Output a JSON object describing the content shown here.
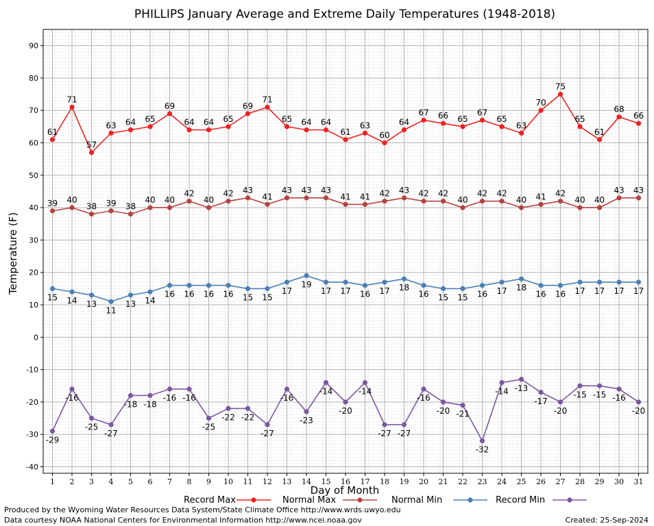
{
  "chart_data": {
    "type": "line",
    "title": "PHILLIPS January Average and Extreme Daily Temperatures (1948-2018)",
    "xlabel": "Day of Month",
    "ylabel": "Temperature (F)",
    "ylim": [
      -42,
      95
    ],
    "yticks": [
      90,
      80,
      70,
      60,
      50,
      40,
      30,
      20,
      10,
      0,
      -10,
      -20,
      -30,
      -40
    ],
    "categories": [
      "1",
      "2",
      "3",
      "4",
      "5",
      "6",
      "7",
      "8",
      "9",
      "10",
      "11",
      "12",
      "13",
      "14",
      "15",
      "16",
      "17",
      "18",
      "19",
      "20",
      "21",
      "22",
      "23",
      "24",
      "25",
      "26",
      "27",
      "28",
      "29",
      "30",
      "31"
    ],
    "grid": true,
    "legend_position": "bottom",
    "series": [
      {
        "name": "Record Max",
        "color": "#ee2222",
        "values": [
          61,
          71,
          57,
          63,
          64,
          65,
          69,
          64,
          64,
          65,
          69,
          71,
          65,
          64,
          64,
          61,
          63,
          60,
          64,
          67,
          66,
          65,
          67,
          65,
          63,
          70,
          75,
          65,
          61,
          68,
          66
        ],
        "label_position": "above"
      },
      {
        "name": "Normal Max",
        "color": "#b5423f",
        "values": [
          39,
          40,
          38,
          39,
          38,
          40,
          40,
          42,
          40,
          42,
          43,
          41,
          43,
          43,
          43,
          41,
          41,
          42,
          43,
          42,
          42,
          40,
          42,
          42,
          40,
          41,
          42,
          40,
          40,
          43,
          43
        ],
        "label_position": "above"
      },
      {
        "name": "Normal Min",
        "color": "#4a7fb5",
        "values": [
          15,
          14,
          13,
          11,
          13,
          14,
          16,
          16,
          16,
          16,
          15,
          15,
          17,
          19,
          17,
          17,
          16,
          17,
          18,
          16,
          15,
          15,
          16,
          17,
          18,
          16,
          16,
          17,
          17,
          17,
          17
        ],
        "label_position": "below"
      },
      {
        "name": "Record Min",
        "color": "#7b57a0",
        "values": [
          -29,
          -16,
          -25,
          -27,
          -18,
          -18,
          -16,
          -16,
          -25,
          -22,
          -22,
          -27,
          -16,
          -23,
          -14,
          -20,
          -14,
          -27,
          -27,
          -16,
          -20,
          -21,
          -32,
          -14,
          -13,
          -17,
          -20,
          -15,
          -15,
          -16,
          -20
        ],
        "label_position": "below"
      }
    ]
  },
  "footer": {
    "line1": "Produced by the Wyoming Water Resources Data System/State Climate Office http://www.wrds.uwyo.edu",
    "line2": "Data courtesy NOAA National Centers for Environmental Information http://www.ncei.noaa.gov",
    "created": "Created:  25-Sep-2024"
  }
}
